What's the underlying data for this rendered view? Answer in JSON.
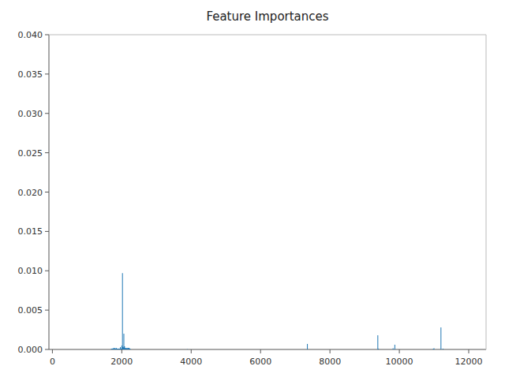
{
  "chart_data": {
    "type": "stem",
    "title": "Feature Importances",
    "color": "#1f77b4",
    "grid": false,
    "xlim": [
      -100,
      12500
    ],
    "ylim": [
      0,
      0.04
    ],
    "xticks": [
      0,
      2000,
      4000,
      6000,
      8000,
      10000,
      12000
    ],
    "yticks": [
      {
        "value": 0.0,
        "label": "0.000"
      },
      {
        "value": 0.005,
        "label": "0.005"
      },
      {
        "value": 0.01,
        "label": "0.010"
      },
      {
        "value": 0.015,
        "label": "0.015"
      },
      {
        "value": 0.02,
        "label": "0.020"
      },
      {
        "value": 0.025,
        "label": "0.025"
      },
      {
        "value": 0.03,
        "label": "0.030"
      },
      {
        "value": 0.035,
        "label": "0.035"
      },
      {
        "value": 0.04,
        "label": "0.040"
      }
    ],
    "x": [
      1700,
      1710,
      1720,
      1730,
      1740,
      1750,
      1760,
      1770,
      1780,
      1790,
      1800,
      1810,
      1820,
      1830,
      1840,
      1850,
      1860,
      1870,
      1880,
      1890,
      1900,
      1910,
      1920,
      1930,
      1940,
      1950,
      1960,
      1970,
      1980,
      1990,
      2000,
      2010,
      2020,
      2030,
      2040,
      2050,
      2060,
      2070,
      2080,
      2090,
      2100,
      2110,
      2120,
      2130,
      2140,
      2150,
      2160,
      2170,
      2180,
      2190,
      2200,
      2210,
      2220,
      2230,
      2240,
      3890,
      7350,
      9380,
      9400,
      9820,
      9870,
      10980,
      11000,
      11200,
      11260
    ],
    "values": [
      0.0001,
      0.0001,
      0.0001,
      0.0001,
      0.0001,
      0.0001,
      0.0002,
      0.0001,
      0.0001,
      0.0001,
      0.0002,
      0.0001,
      0.0001,
      0.0001,
      0.0002,
      0.0001,
      0.0001,
      0.0001,
      0.0001,
      0.0001,
      0.0001,
      0.0001,
      0.0001,
      0.0001,
      0.0001,
      0.0001,
      0.0003,
      0.0001,
      0.0001,
      0.0001,
      0.0005,
      0.0001,
      0.0097,
      0.0003,
      0.0003,
      0.0002,
      0.002,
      0.0004,
      0.0004,
      0.0002,
      0.00015,
      0.00015,
      0.00015,
      0.00015,
      0.00015,
      0.00015,
      0.00015,
      0.00015,
      0.00015,
      0.0002,
      0.0002,
      0.00015,
      0.00015,
      0.0001,
      0.0001,
      3e-05,
      0.0007,
      0.0018,
      0.0001,
      0.00015,
      0.0006,
      0.0001,
      0.00015,
      0.0028,
      0.0001
    ]
  }
}
